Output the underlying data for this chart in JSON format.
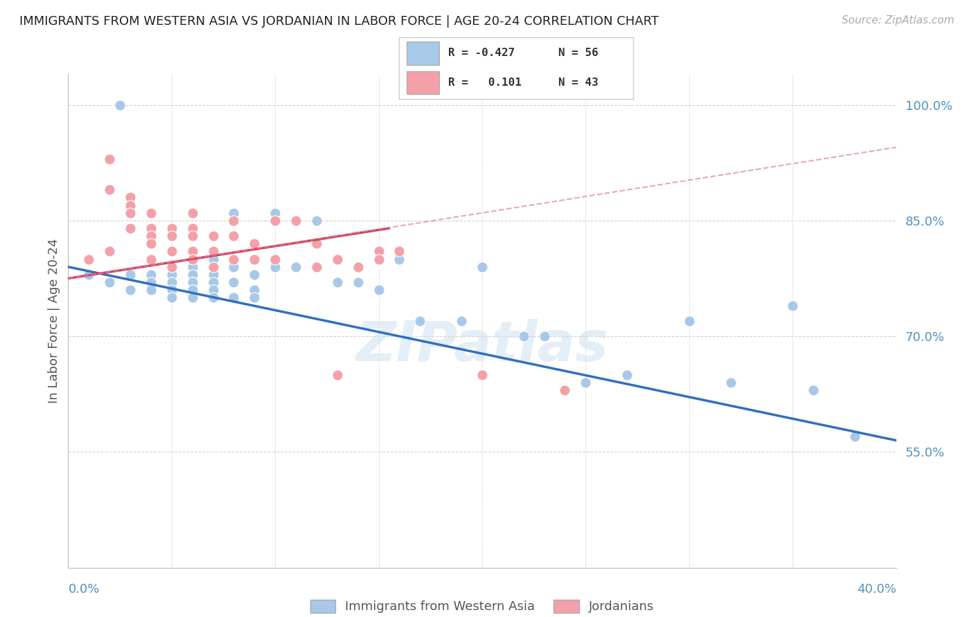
{
  "title": "IMMIGRANTS FROM WESTERN ASIA VS JORDANIAN IN LABOR FORCE | AGE 20-24 CORRELATION CHART",
  "source": "Source: ZipAtlas.com",
  "ylabel": "In Labor Force | Age 20-24",
  "yticks": [
    0.55,
    0.7,
    0.85,
    1.0
  ],
  "ytick_labels": [
    "55.0%",
    "70.0%",
    "85.0%",
    "100.0%"
  ],
  "xmin": 0.0,
  "xmax": 0.4,
  "ymin": 0.4,
  "ymax": 1.04,
  "blue_color": "#a8c8e8",
  "pink_color": "#f4a0a8",
  "blue_line_color": "#3070c0",
  "pink_line_color": "#d04060",
  "pink_dash_color": "#e08090",
  "legend_R_blue": "-0.427",
  "legend_N_blue": "56",
  "legend_R_pink": "0.101",
  "legend_N_pink": "43",
  "blue_scatter_x": [
    0.025,
    0.01,
    0.02,
    0.03,
    0.03,
    0.04,
    0.04,
    0.04,
    0.04,
    0.05,
    0.05,
    0.05,
    0.05,
    0.05,
    0.06,
    0.06,
    0.06,
    0.06,
    0.06,
    0.06,
    0.07,
    0.07,
    0.07,
    0.07,
    0.07,
    0.07,
    0.08,
    0.08,
    0.08,
    0.08,
    0.09,
    0.09,
    0.09,
    0.09,
    0.1,
    0.1,
    0.11,
    0.11,
    0.12,
    0.12,
    0.13,
    0.14,
    0.15,
    0.16,
    0.17,
    0.19,
    0.2,
    0.22,
    0.23,
    0.25,
    0.27,
    0.3,
    0.32,
    0.35,
    0.36,
    0.38
  ],
  "blue_scatter_y": [
    1.0,
    0.78,
    0.77,
    0.78,
    0.76,
    0.78,
    0.78,
    0.77,
    0.76,
    0.79,
    0.78,
    0.77,
    0.76,
    0.75,
    0.79,
    0.78,
    0.77,
    0.77,
    0.76,
    0.75,
    0.8,
    0.79,
    0.78,
    0.77,
    0.76,
    0.75,
    0.86,
    0.79,
    0.77,
    0.75,
    0.8,
    0.78,
    0.76,
    0.75,
    0.86,
    0.79,
    0.85,
    0.79,
    0.85,
    0.79,
    0.77,
    0.77,
    0.76,
    0.8,
    0.72,
    0.72,
    0.79,
    0.7,
    0.7,
    0.64,
    0.65,
    0.72,
    0.64,
    0.74,
    0.63,
    0.57
  ],
  "pink_scatter_x": [
    0.01,
    0.02,
    0.02,
    0.02,
    0.03,
    0.03,
    0.03,
    0.03,
    0.04,
    0.04,
    0.04,
    0.04,
    0.04,
    0.05,
    0.05,
    0.05,
    0.05,
    0.06,
    0.06,
    0.06,
    0.06,
    0.06,
    0.07,
    0.07,
    0.07,
    0.08,
    0.08,
    0.08,
    0.09,
    0.09,
    0.1,
    0.1,
    0.11,
    0.12,
    0.12,
    0.13,
    0.13,
    0.14,
    0.15,
    0.15,
    0.16,
    0.2,
    0.24
  ],
  "pink_scatter_y": [
    0.8,
    0.93,
    0.89,
    0.81,
    0.88,
    0.87,
    0.86,
    0.84,
    0.86,
    0.84,
    0.83,
    0.82,
    0.8,
    0.84,
    0.83,
    0.81,
    0.79,
    0.86,
    0.84,
    0.83,
    0.81,
    0.8,
    0.83,
    0.81,
    0.79,
    0.85,
    0.83,
    0.8,
    0.82,
    0.8,
    0.85,
    0.8,
    0.85,
    0.82,
    0.79,
    0.8,
    0.65,
    0.79,
    0.81,
    0.8,
    0.81,
    0.65,
    0.63
  ],
  "blue_trendline_x": [
    0.0,
    0.4
  ],
  "blue_trendline_y": [
    0.79,
    0.565
  ],
  "pink_solid_trendline_x": [
    0.0,
    0.155
  ],
  "pink_solid_trendline_y": [
    0.775,
    0.84
  ],
  "pink_dash_trendline_x": [
    0.0,
    0.4
  ],
  "pink_dash_trendline_y": [
    0.775,
    0.945
  ],
  "watermark": "ZIPatlas",
  "background_color": "#ffffff",
  "grid_color": "#d0d0d0"
}
